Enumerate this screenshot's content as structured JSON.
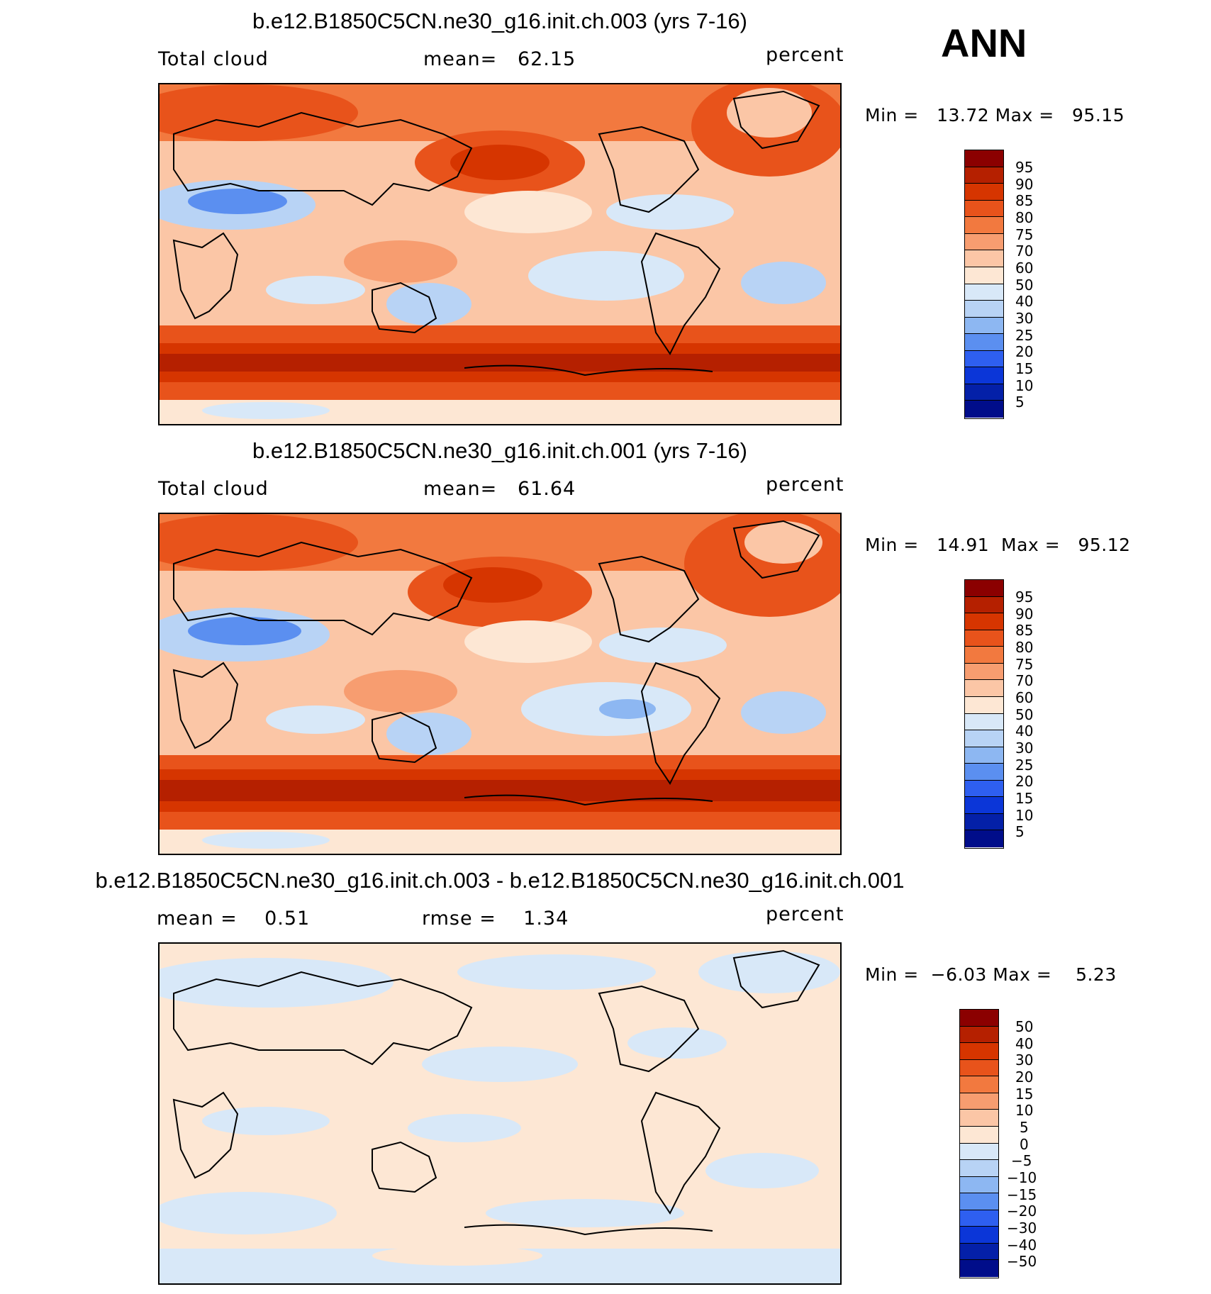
{
  "season": "ANN",
  "panels": [
    {
      "title": "b.e12.B1850C5CN.ne30_g16.init.ch.003 (yrs 7-16)",
      "left_label": "Total cloud",
      "center_label": "mean=   62.15",
      "units": "percent",
      "stats": "Min =   13.72 Max =   95.15",
      "colorbar": {
        "labels": [
          "95",
          "90",
          "85",
          "80",
          "75",
          "70",
          "60",
          "50",
          "40",
          "30",
          "25",
          "20",
          "15",
          "10",
          "5"
        ],
        "colors": [
          "#8b0000",
          "#b52000",
          "#d63500",
          "#e8531b",
          "#f2793f",
          "#f79d70",
          "#fbc6a6",
          "#fde7d4",
          "#d8e8f8",
          "#b8d3f5",
          "#8db7f2",
          "#5b8ff0",
          "#2e5ff0",
          "#0b36d8",
          "#0420a8",
          "#000d8a"
        ]
      },
      "map_palette": {
        "high": "#e8531b",
        "veryhigh": "#b52000",
        "mid": "#f79d70",
        "light": "#fbc6a6",
        "pale": "#fde7d4",
        "lowpale": "#d8e8f8",
        "low": "#b8d3f5",
        "verylow": "#5b8ff0"
      }
    },
    {
      "title": "b.e12.B1850C5CN.ne30_g16.init.ch.001 (yrs 7-16)",
      "left_label": "Total cloud",
      "center_label": "mean=   61.64",
      "units": "percent",
      "stats": "Min =   14.91  Max =   95.12",
      "colorbar": {
        "labels": [
          "95",
          "90",
          "85",
          "80",
          "75",
          "70",
          "60",
          "50",
          "40",
          "30",
          "25",
          "20",
          "15",
          "10",
          "5"
        ],
        "colors": [
          "#8b0000",
          "#b52000",
          "#d63500",
          "#e8531b",
          "#f2793f",
          "#f79d70",
          "#fbc6a6",
          "#fde7d4",
          "#d8e8f8",
          "#b8d3f5",
          "#8db7f2",
          "#5b8ff0",
          "#2e5ff0",
          "#0b36d8",
          "#0420a8",
          "#000d8a"
        ]
      },
      "map_palette": {
        "high": "#e8531b",
        "veryhigh": "#b52000",
        "mid": "#f79d70",
        "light": "#fbc6a6",
        "pale": "#fde7d4",
        "lowpale": "#d8e8f8",
        "low": "#b8d3f5",
        "verylow": "#5b8ff0"
      }
    },
    {
      "title": "b.e12.B1850C5CN.ne30_g16.init.ch.003 - b.e12.B1850C5CN.ne30_g16.init.ch.001",
      "left_label": "mean =    0.51",
      "center_label": "rmse =    1.34",
      "units": "percent",
      "stats": "Min =  −6.03 Max =    5.23",
      "colorbar": {
        "labels": [
          "50",
          "40",
          "30",
          "20",
          "15",
          "10",
          "5",
          "0",
          "−5",
          "−10",
          "−15",
          "−20",
          "−30",
          "−40",
          "−50"
        ],
        "colors": [
          "#8b0000",
          "#b52000",
          "#d63500",
          "#e8531b",
          "#f2793f",
          "#f79d70",
          "#fbc6a6",
          "#fde7d4",
          "#d8e8f8",
          "#b8d3f5",
          "#8db7f2",
          "#5b8ff0",
          "#2e5ff0",
          "#0b36d8",
          "#0420a8",
          "#000d8a"
        ]
      },
      "map_palette": {
        "base": "#fde7d4",
        "neg": "#d8e8f8"
      }
    }
  ]
}
